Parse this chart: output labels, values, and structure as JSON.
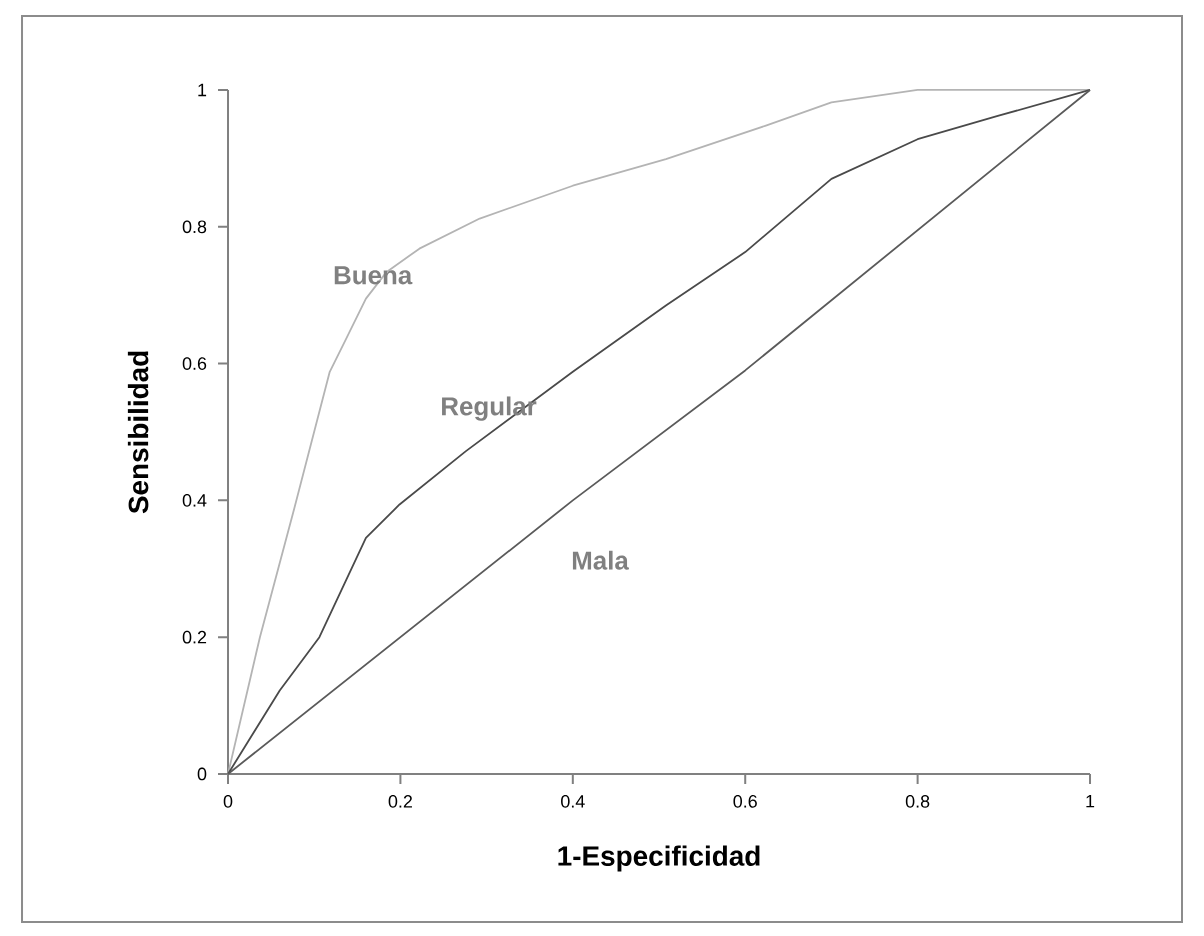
{
  "chart_data": {
    "type": "line",
    "xlabel": "1-Especificidad",
    "ylabel": "Sensibilidad",
    "xlim": [
      0,
      1
    ],
    "ylim": [
      0,
      1
    ],
    "xticks": [
      0,
      0.2,
      0.4,
      0.6,
      0.8,
      1
    ],
    "yticks": [
      0,
      0.2,
      0.4,
      0.6,
      0.8,
      1
    ],
    "series": [
      {
        "name": "Buena",
        "color": "#b4b4b4",
        "x": [
          0,
          0.037,
          0.076,
          0.118,
          0.137,
          0.16,
          0.184,
          0.222,
          0.292,
          0.4,
          0.508,
          0.624,
          0.7,
          0.8,
          1
        ],
        "values": [
          0,
          0.2,
          0.384,
          0.588,
          0.636,
          0.695,
          0.734,
          0.768,
          0.812,
          0.86,
          0.899,
          0.948,
          0.982,
          1,
          1
        ]
      },
      {
        "name": "Regular",
        "color": "#4a4a4a",
        "x": [
          0,
          0.06,
          0.106,
          0.16,
          0.199,
          0.276,
          0.4,
          0.508,
          0.6,
          0.7,
          0.8,
          0.893,
          1
        ],
        "values": [
          0,
          0.122,
          0.2,
          0.345,
          0.394,
          0.472,
          0.588,
          0.685,
          0.763,
          0.87,
          0.928,
          0.962,
          1
        ]
      },
      {
        "name": "Mala",
        "color": "#5a5a5a",
        "x": [
          0,
          0.4,
          0.6,
          1
        ],
        "values": [
          0,
          0.4,
          0.59,
          1
        ]
      }
    ]
  }
}
